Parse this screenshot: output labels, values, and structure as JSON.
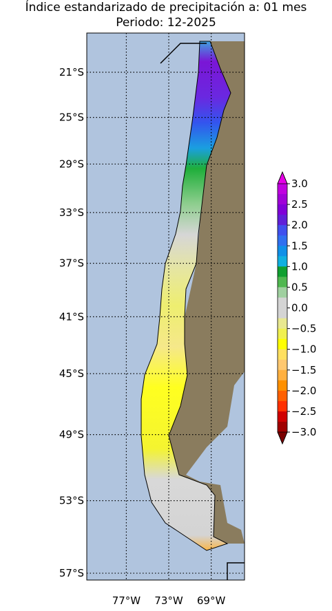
{
  "title": "Índice estandarizado de precipitación a: 01 mes",
  "subtitle": "Periodo: 12-2025",
  "map": {
    "lat_labels": [
      {
        "value": -21,
        "label": "21°S"
      },
      {
        "value": -25,
        "label": "25°S"
      },
      {
        "value": -29,
        "label": "29°S"
      },
      {
        "value": -33,
        "label": "33°S"
      },
      {
        "value": -37,
        "label": "37°S"
      },
      {
        "value": -41,
        "label": "41°S"
      },
      {
        "value": -45,
        "label": "45°S"
      },
      {
        "value": -49,
        "label": "49°S"
      },
      {
        "value": -53,
        "label": "53°S"
      },
      {
        "value": -57,
        "label": "57°S"
      }
    ],
    "lon_labels": [
      {
        "value": -77,
        "label": "77°W"
      },
      {
        "value": -73,
        "label": "73°W"
      },
      {
        "value": -69,
        "label": "69°W"
      }
    ]
  },
  "colorbar": {
    "ticks": [
      {
        "value": 3,
        "label": "3.0"
      },
      {
        "value": 2.5,
        "label": "2.5"
      },
      {
        "value": 2,
        "label": "2.0"
      },
      {
        "value": 1.5,
        "label": "1.5"
      },
      {
        "value": 1,
        "label": "1.0"
      },
      {
        "value": 0.5,
        "label": "0.5"
      },
      {
        "value": 0,
        "label": "0.0"
      },
      {
        "value": -0.5,
        "label": "−0.5"
      },
      {
        "value": -1,
        "label": "−1.0"
      },
      {
        "value": -1.5,
        "label": "−1.5"
      },
      {
        "value": -2,
        "label": "−2.0"
      },
      {
        "value": -2.5,
        "label": "−2.5"
      },
      {
        "value": -3,
        "label": "−3.0"
      }
    ]
  }
}
